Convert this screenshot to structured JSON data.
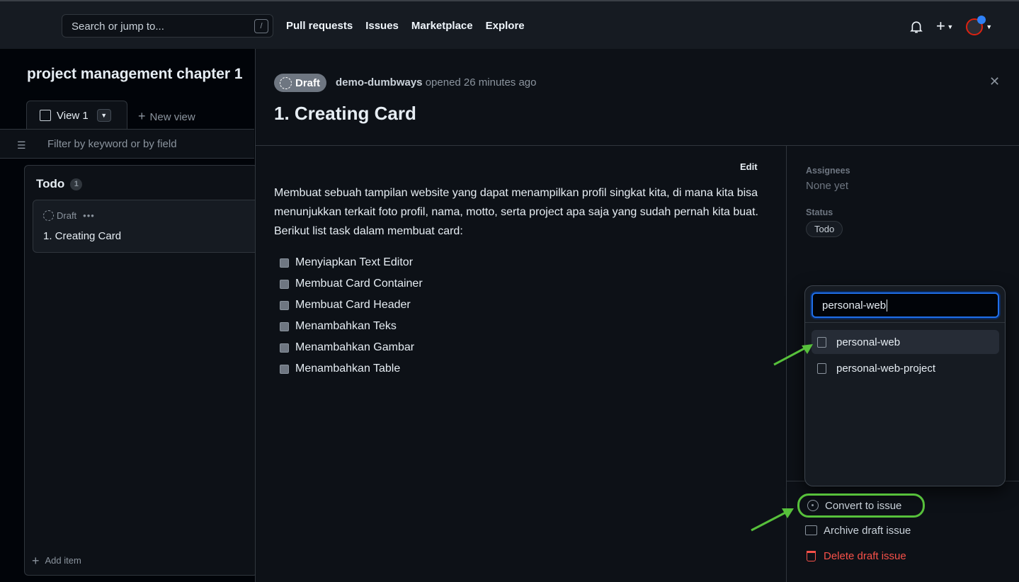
{
  "header": {
    "search_placeholder": "Search or jump to...",
    "slash_key": "/",
    "nav": [
      "Pull requests",
      "Issues",
      "Marketplace",
      "Explore"
    ]
  },
  "project": {
    "title": "project management chapter 1",
    "tab_label": "View 1",
    "new_view": "New view",
    "filter_placeholder": "Filter by keyword or by field",
    "column": {
      "name": "Todo",
      "count": "1",
      "card": {
        "type": "Draft",
        "title": "1. Creating Card"
      },
      "add_item": "Add item"
    }
  },
  "issue": {
    "badge": "Draft",
    "author": "demo-dumbways",
    "meta": "opened 26 minutes ago",
    "title": "1. Creating Card",
    "edit": "Edit",
    "body": "Membuat sebuah tampilan website yang dapat menampilkan profil singkat kita, di mana kita bisa menunjukkan terkait foto profil, nama, motto, serta project apa saja yang sudah pernah kita buat. Berikut list task dalam membuat card:",
    "tasks": [
      "Menyiapkan Text Editor",
      "Membuat Card Container",
      "Membuat Card Header",
      "Menambahkan Teks",
      "Menambahkan Gambar",
      "Menambahkan Table"
    ]
  },
  "sidebar": {
    "assignees_label": "Assignees",
    "assignees_value": "None yet",
    "status_label": "Status",
    "status_value": "Todo"
  },
  "repo_picker": {
    "input_value": "personal-web",
    "options": [
      "personal-web",
      "personal-web-project"
    ]
  },
  "actions": {
    "convert": "Convert to issue",
    "archive": "Archive draft issue",
    "delete": "Delete draft issue"
  },
  "colors": {
    "accent": "#1f6feb",
    "danger": "#f85149",
    "annotation": "#57c03b"
  }
}
